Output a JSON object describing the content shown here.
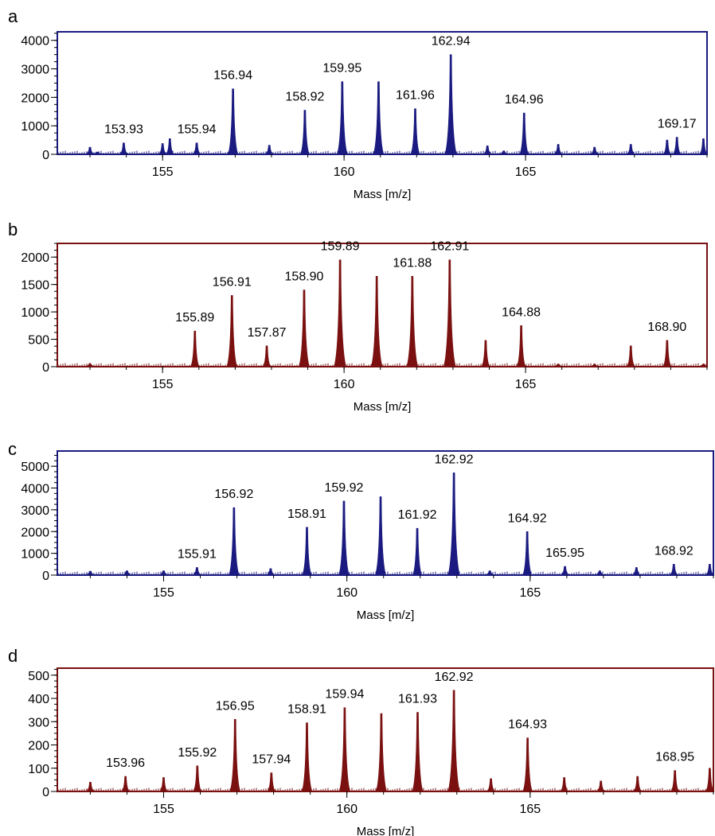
{
  "chart_data": [
    {
      "panel": "a",
      "type": "bar",
      "xlabel": "Mass [m/z]",
      "ylabel": "",
      "xlim": [
        152.1,
        170
      ],
      "ylim": [
        0,
        4300
      ],
      "xticks": [
        155,
        160,
        165
      ],
      "yticks": [
        0,
        1000,
        2000,
        3000,
        4000
      ],
      "color": "#1a1a80",
      "peaks": [
        {
          "x": 153.0,
          "y": 250
        },
        {
          "x": 153.2,
          "y": 80
        },
        {
          "x": 153.93,
          "y": 400
        },
        {
          "x": 155.0,
          "y": 380
        },
        {
          "x": 155.2,
          "y": 550
        },
        {
          "x": 155.94,
          "y": 400
        },
        {
          "x": 156.94,
          "y": 2300
        },
        {
          "x": 157.94,
          "y": 320
        },
        {
          "x": 158.92,
          "y": 1550
        },
        {
          "x": 159.95,
          "y": 2550
        },
        {
          "x": 160.95,
          "y": 2550
        },
        {
          "x": 161.96,
          "y": 1600
        },
        {
          "x": 162.94,
          "y": 3500
        },
        {
          "x": 163.95,
          "y": 300
        },
        {
          "x": 164.4,
          "y": 120
        },
        {
          "x": 164.96,
          "y": 1450
        },
        {
          "x": 165.9,
          "y": 350
        },
        {
          "x": 166.9,
          "y": 250
        },
        {
          "x": 167.9,
          "y": 350
        },
        {
          "x": 168.9,
          "y": 500
        },
        {
          "x": 169.17,
          "y": 600
        },
        {
          "x": 169.9,
          "y": 550
        }
      ],
      "labels": [
        {
          "text": "153.93",
          "x": 153.93,
          "y": 400
        },
        {
          "text": "155.94",
          "x": 155.94,
          "y": 400
        },
        {
          "text": "156.94",
          "x": 156.94,
          "y": 2300
        },
        {
          "text": "158.92",
          "x": 158.92,
          "y": 1550
        },
        {
          "text": "159.95",
          "x": 159.95,
          "y": 2550
        },
        {
          "text": "161.96",
          "x": 161.96,
          "y": 1600
        },
        {
          "text": "162.94",
          "x": 162.94,
          "y": 3500
        },
        {
          "text": "164.96",
          "x": 164.96,
          "y": 1450
        },
        {
          "text": "169.17",
          "x": 169.17,
          "y": 600
        }
      ]
    },
    {
      "panel": "b",
      "type": "bar",
      "xlabel": "Mass [m/z]",
      "ylabel": "",
      "xlim": [
        152.1,
        170
      ],
      "ylim": [
        0,
        2250
      ],
      "xticks": [
        155,
        160,
        165
      ],
      "yticks": [
        0,
        500,
        1000,
        1500,
        2000
      ],
      "color": "#7a1010",
      "peaks": [
        {
          "x": 153.0,
          "y": 60
        },
        {
          "x": 155.89,
          "y": 650
        },
        {
          "x": 156.91,
          "y": 1300
        },
        {
          "x": 157.87,
          "y": 380
        },
        {
          "x": 158.9,
          "y": 1400
        },
        {
          "x": 159.89,
          "y": 1950
        },
        {
          "x": 160.9,
          "y": 1650
        },
        {
          "x": 161.88,
          "y": 1650
        },
        {
          "x": 162.91,
          "y": 1950
        },
        {
          "x": 163.9,
          "y": 480
        },
        {
          "x": 164.88,
          "y": 750
        },
        {
          "x": 165.9,
          "y": 50
        },
        {
          "x": 166.9,
          "y": 50
        },
        {
          "x": 167.9,
          "y": 380
        },
        {
          "x": 168.9,
          "y": 480
        },
        {
          "x": 169.9,
          "y": 50
        }
      ],
      "labels": [
        {
          "text": "155.89",
          "x": 155.89,
          "y": 650
        },
        {
          "text": "156.91",
          "x": 156.91,
          "y": 1300
        },
        {
          "text": "157.87",
          "x": 157.87,
          "y": 380
        },
        {
          "text": "158.90",
          "x": 158.9,
          "y": 1400
        },
        {
          "text": "159.89",
          "x": 159.89,
          "y": 1950
        },
        {
          "text": "161.88",
          "x": 161.88,
          "y": 1650
        },
        {
          "text": "162.91",
          "x": 162.91,
          "y": 1950
        },
        {
          "text": "164.88",
          "x": 164.88,
          "y": 750
        },
        {
          "text": "168.90",
          "x": 168.9,
          "y": 480
        }
      ]
    },
    {
      "panel": "c",
      "type": "bar",
      "xlabel": "Mass [m/z]",
      "ylabel": "",
      "xlim": [
        152.1,
        170
      ],
      "ylim": [
        0,
        5700
      ],
      "xticks": [
        155,
        160,
        165
      ],
      "yticks": [
        0,
        1000,
        2000,
        3000,
        4000,
        5000
      ],
      "color": "#1a1a80",
      "peaks": [
        {
          "x": 153.0,
          "y": 180
        },
        {
          "x": 154.0,
          "y": 200
        },
        {
          "x": 155.0,
          "y": 200
        },
        {
          "x": 155.91,
          "y": 350
        },
        {
          "x": 156.92,
          "y": 3100
        },
        {
          "x": 157.92,
          "y": 300
        },
        {
          "x": 158.91,
          "y": 2200
        },
        {
          "x": 159.92,
          "y": 3400
        },
        {
          "x": 160.92,
          "y": 3600
        },
        {
          "x": 161.92,
          "y": 2150
        },
        {
          "x": 162.92,
          "y": 4700
        },
        {
          "x": 163.9,
          "y": 200
        },
        {
          "x": 164.92,
          "y": 2000
        },
        {
          "x": 165.95,
          "y": 400
        },
        {
          "x": 166.9,
          "y": 200
        },
        {
          "x": 167.9,
          "y": 350
        },
        {
          "x": 168.92,
          "y": 500
        },
        {
          "x": 169.9,
          "y": 500
        }
      ],
      "labels": [
        {
          "text": "155.91",
          "x": 155.91,
          "y": 350
        },
        {
          "text": "156.92",
          "x": 156.92,
          "y": 3100
        },
        {
          "text": "158.91",
          "x": 158.91,
          "y": 2200
        },
        {
          "text": "159.92",
          "x": 159.92,
          "y": 3400
        },
        {
          "text": "161.92",
          "x": 161.92,
          "y": 2150
        },
        {
          "text": "162.92",
          "x": 162.92,
          "y": 4700
        },
        {
          "text": "164.92",
          "x": 164.92,
          "y": 2000
        },
        {
          "text": "165.95",
          "x": 165.95,
          "y": 400
        },
        {
          "text": "168.92",
          "x": 168.92,
          "y": 500
        }
      ]
    },
    {
      "panel": "d",
      "type": "bar",
      "xlabel": "Mass [m/z]",
      "ylabel": "",
      "xlim": [
        152.1,
        170
      ],
      "ylim": [
        0,
        530
      ],
      "xticks": [
        155,
        160,
        165
      ],
      "yticks": [
        0,
        100,
        200,
        300,
        400,
        500
      ],
      "color": "#7a1010",
      "peaks": [
        {
          "x": 153.0,
          "y": 40
        },
        {
          "x": 153.96,
          "y": 65
        },
        {
          "x": 155.0,
          "y": 60
        },
        {
          "x": 155.92,
          "y": 110
        },
        {
          "x": 156.95,
          "y": 310
        },
        {
          "x": 157.94,
          "y": 80
        },
        {
          "x": 158.91,
          "y": 295
        },
        {
          "x": 159.94,
          "y": 360
        },
        {
          "x": 160.94,
          "y": 335
        },
        {
          "x": 161.93,
          "y": 340
        },
        {
          "x": 162.92,
          "y": 435
        },
        {
          "x": 163.93,
          "y": 55
        },
        {
          "x": 164.93,
          "y": 230
        },
        {
          "x": 165.93,
          "y": 60
        },
        {
          "x": 166.93,
          "y": 45
        },
        {
          "x": 167.93,
          "y": 65
        },
        {
          "x": 168.95,
          "y": 90
        },
        {
          "x": 169.9,
          "y": 100
        }
      ],
      "labels": [
        {
          "text": "153.96",
          "x": 153.96,
          "y": 65
        },
        {
          "text": "155.92",
          "x": 155.92,
          "y": 110
        },
        {
          "text": "156.95",
          "x": 156.95,
          "y": 310
        },
        {
          "text": "157.94",
          "x": 157.94,
          "y": 80
        },
        {
          "text": "158.91",
          "x": 158.91,
          "y": 295
        },
        {
          "text": "159.94",
          "x": 159.94,
          "y": 360
        },
        {
          "text": "161.93",
          "x": 161.93,
          "y": 340
        },
        {
          "text": "162.92",
          "x": 162.92,
          "y": 435
        },
        {
          "text": "164.93",
          "x": 164.93,
          "y": 230
        },
        {
          "text": "168.95",
          "x": 168.95,
          "y": 90
        }
      ]
    }
  ]
}
